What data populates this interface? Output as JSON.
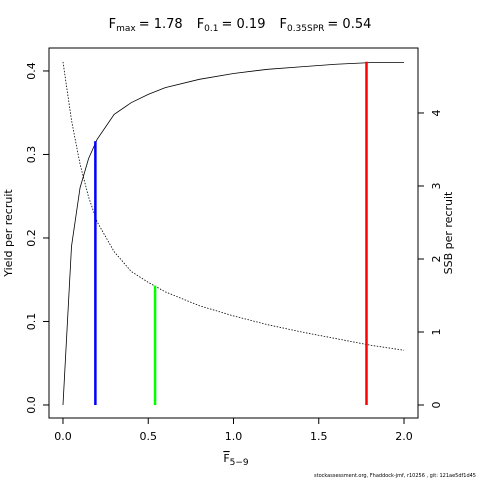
{
  "chart_data": {
    "type": "line",
    "title_parts": [
      {
        "symbol": "F",
        "sub": "max",
        "text": "= 1.78"
      },
      {
        "symbol": "F",
        "sub": "0.1",
        "text": "= 0.19"
      },
      {
        "symbol": "F",
        "sub": "0.35SPR",
        "text": "= 0.54"
      }
    ],
    "x_label": {
      "symbol": "F",
      "sub": "5−9"
    },
    "y_label": "Yield per recruit",
    "y2_label": "SSB per recruit",
    "footnote": "stockassessment.org, Fhaddock-jmf, r10256 , git: 121ae5df1d45",
    "x": [
      0,
      0.05,
      0.1,
      0.15,
      0.2,
      0.3,
      0.4,
      0.5,
      0.6,
      0.8,
      1.0,
      1.2,
      1.4,
      1.6,
      1.8,
      2.0
    ],
    "series": [
      {
        "name": "Yield per recruit",
        "color": "#000000",
        "dash": "solid",
        "values": [
          0,
          0.19,
          0.26,
          0.295,
          0.318,
          0.348,
          0.362,
          0.372,
          0.38,
          0.39,
          0.397,
          0.402,
          0.405,
          0.408,
          0.41,
          0.41
        ]
      },
      {
        "name": "SSB per recruit",
        "color": "#000000",
        "dash": "dotted",
        "axis": "y2",
        "values": [
          4.7,
          3.9,
          3.3,
          2.85,
          2.51,
          2.1,
          1.83,
          1.68,
          1.55,
          1.36,
          1.22,
          1.1,
          1.0,
          0.91,
          0.82,
          0.75
        ]
      }
    ],
    "reference_lines": [
      {
        "x": 0.19,
        "y": 0.316,
        "color": "#0000ff"
      },
      {
        "x": 0.54,
        "y": 0.143,
        "color": "#00ff00"
      },
      {
        "x": 1.78,
        "y": 0.411,
        "color": "#ff0000"
      }
    ],
    "xlim": [
      -0.082,
      2.082
    ],
    "ylim": [
      -0.0156,
      0.4275
    ],
    "y2lim": [
      -0.178,
      4.89
    ],
    "xticks": [
      {
        "value": 0,
        "label": "0.0"
      },
      {
        "value": 0.5,
        "label": "0.5"
      },
      {
        "value": 1,
        "label": "1.0"
      },
      {
        "value": 1.5,
        "label": "1.5"
      },
      {
        "value": 2,
        "label": "2.0"
      }
    ],
    "yticks": [
      {
        "value": 0,
        "label": "0.0"
      },
      0.1,
      0.2,
      0.3,
      0.4
    ],
    "y2ticks": [
      0,
      1,
      2,
      3,
      4
    ]
  }
}
